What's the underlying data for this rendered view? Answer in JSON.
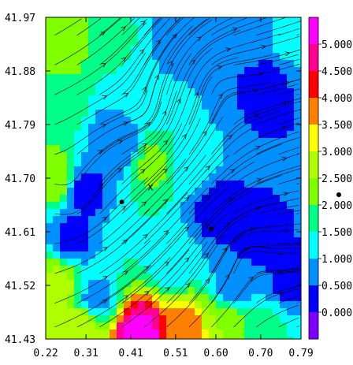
{
  "chart_data": {
    "type": "heatmap",
    "title": "",
    "xlabel": "",
    "ylabel": "",
    "x_ticks": [
      "0.22",
      "0.31",
      "0.41",
      "0.51",
      "0.60",
      "0.70",
      "0.79"
    ],
    "x_tick_values": [
      0.22,
      0.31,
      0.41,
      0.51,
      0.6,
      0.7,
      0.79
    ],
    "y_ticks": [
      "41.97",
      "41.88",
      "41.79",
      "41.70",
      "41.61",
      "41.52",
      "41.43"
    ],
    "y_tick_values": [
      41.97,
      41.88,
      41.79,
      41.7,
      41.61,
      41.52,
      41.43
    ],
    "xlim": [
      0.22,
      0.79
    ],
    "ylim": [
      41.43,
      41.97
    ],
    "colorbar": {
      "labels": [
        "5.000",
        "4.500",
        "4.000",
        "3.500",
        "3.000",
        "2.500",
        "2.000",
        "1.500",
        "1.000",
        "0.500",
        "0.000"
      ],
      "bands": [
        {
          "from": 5.0,
          "to": 5.5,
          "color": "#ff00ff"
        },
        {
          "from": 4.5,
          "to": 5.0,
          "color": "#ff0090"
        },
        {
          "from": 4.0,
          "to": 4.5,
          "color": "#ff0000"
        },
        {
          "from": 3.5,
          "to": 4.0,
          "color": "#ff7f00"
        },
        {
          "from": 3.0,
          "to": 3.5,
          "color": "#ffff00"
        },
        {
          "from": 2.5,
          "to": 3.0,
          "color": "#b0ff00"
        },
        {
          "from": 2.0,
          "to": 2.5,
          "color": "#7fff00"
        },
        {
          "from": 1.5,
          "to": 2.0,
          "color": "#00ff88"
        },
        {
          "from": 1.0,
          "to": 1.5,
          "color": "#00ffff"
        },
        {
          "from": 0.5,
          "to": 1.0,
          "color": "#0090ff"
        },
        {
          "from": 0.0,
          "to": 0.5,
          "color": "#0000ff"
        },
        {
          "from": -0.5,
          "to": 0.0,
          "color": "#8000ff"
        }
      ]
    },
    "field_centers": [
      {
        "x": 0.255,
        "y": 41.93,
        "value": 2.4
      },
      {
        "x": 0.37,
        "y": 41.93,
        "value": 1.6
      },
      {
        "x": 0.5,
        "y": 41.92,
        "value": 0.9
      },
      {
        "x": 0.66,
        "y": 41.93,
        "value": 0.7
      },
      {
        "x": 0.77,
        "y": 41.94,
        "value": 1.1
      },
      {
        "x": 0.25,
        "y": 41.82,
        "value": 1.7
      },
      {
        "x": 0.42,
        "y": 41.85,
        "value": 1.4
      },
      {
        "x": 0.57,
        "y": 41.82,
        "value": 1.0
      },
      {
        "x": 0.7,
        "y": 41.85,
        "value": 0.3
      },
      {
        "x": 0.38,
        "y": 41.76,
        "value": 0.5
      },
      {
        "x": 0.46,
        "y": 41.72,
        "value": 2.1
      },
      {
        "x": 0.24,
        "y": 41.7,
        "value": 2.3
      },
      {
        "x": 0.31,
        "y": 41.68,
        "value": 0.4
      },
      {
        "x": 0.55,
        "y": 41.72,
        "value": 1.2
      },
      {
        "x": 0.77,
        "y": 41.75,
        "value": 0.5
      },
      {
        "x": 0.28,
        "y": 41.6,
        "value": 0.4
      },
      {
        "x": 0.6,
        "y": 41.65,
        "value": 0.3
      },
      {
        "x": 0.68,
        "y": 41.6,
        "value": 0.3
      },
      {
        "x": 0.42,
        "y": 41.6,
        "value": 1.5
      },
      {
        "x": 0.5,
        "y": 41.56,
        "value": 1.2
      },
      {
        "x": 0.25,
        "y": 41.52,
        "value": 2.6
      },
      {
        "x": 0.33,
        "y": 41.5,
        "value": 0.9
      },
      {
        "x": 0.64,
        "y": 41.52,
        "value": 0.8
      },
      {
        "x": 0.76,
        "y": 41.52,
        "value": 0.4
      },
      {
        "x": 0.3,
        "y": 41.45,
        "value": 2.8
      },
      {
        "x": 0.43,
        "y": 41.44,
        "value": 5.2
      },
      {
        "x": 0.53,
        "y": 41.44,
        "value": 3.9
      },
      {
        "x": 0.62,
        "y": 41.45,
        "value": 2.5
      },
      {
        "x": 0.72,
        "y": 41.45,
        "value": 1.6
      }
    ],
    "flow_seed_rows": [
      41.94,
      41.89,
      41.84,
      41.79,
      41.74,
      41.69,
      41.64,
      41.59,
      41.54,
      41.49,
      41.45
    ],
    "flow_seed_cols": [
      0.24,
      0.29,
      0.34,
      0.39,
      0.44,
      0.49,
      0.54,
      0.59,
      0.64,
      0.69,
      0.74,
      0.78
    ],
    "markers": [
      {
        "x": 0.39,
        "y": 41.66,
        "symbol": "dot"
      },
      {
        "x": 0.59,
        "y": 41.615,
        "symbol": "dot"
      },
      {
        "x": 0.454,
        "y": 41.685,
        "symbol": "x",
        "label": "x"
      }
    ],
    "outside_marker": {
      "symbol": "dot"
    },
    "grid": false,
    "legend": "colorbar-right"
  }
}
